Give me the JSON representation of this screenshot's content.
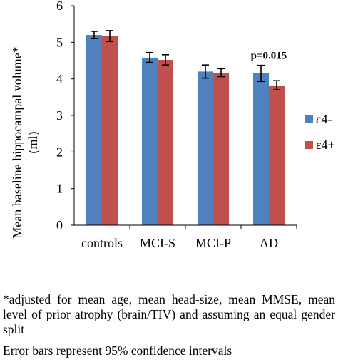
{
  "chart_data": {
    "type": "bar",
    "categories": [
      "controls",
      "MCI-S",
      "MCI-P",
      "AD"
    ],
    "series": [
      {
        "name": "ε4-",
        "color": "#4F81BD",
        "values": [
          5.2,
          4.58,
          4.2,
          4.15
        ],
        "error_low": [
          5.1,
          4.45,
          4.02,
          3.93
        ],
        "error_high": [
          5.3,
          4.72,
          4.38,
          4.37
        ]
      },
      {
        "name": "ε4+",
        "color": "#C0504D",
        "values": [
          5.17,
          4.52,
          4.17,
          3.82
        ],
        "error_low": [
          5.02,
          4.38,
          4.06,
          3.7
        ],
        "error_high": [
          5.32,
          4.66,
          4.28,
          3.95
        ]
      }
    ],
    "ylim": [
      0,
      6
    ],
    "yticks": [
      "0",
      "1",
      "2",
      "3",
      "4",
      "5",
      "6"
    ],
    "ylabel_line1": "Mean baseline hippocampal volume*",
    "ylabel_line2": "(ml)",
    "annotation": "p=0.015",
    "legend_position": "right",
    "grid": false
  },
  "footnotes": {
    "adjustment": "*adjusted for mean age,  mean head-size, mean MMSE, mean level of prior atrophy (brain/TIV) and assuming an equal gender split",
    "error_bars": "Error bars represent 95% confidence intervals"
  }
}
